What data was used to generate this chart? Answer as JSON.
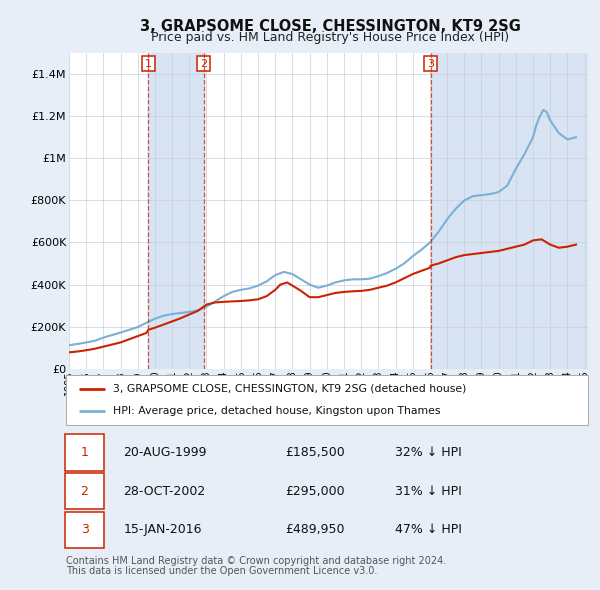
{
  "title": "3, GRAPSOME CLOSE, CHESSINGTON, KT9 2SG",
  "subtitle": "Price paid vs. HM Land Registry's House Price Index (HPI)",
  "ylim": [
    0,
    1500000
  ],
  "yticks": [
    0,
    200000,
    400000,
    600000,
    800000,
    1000000,
    1200000,
    1400000
  ],
  "ytick_labels": [
    "£0",
    "£200K",
    "£400K",
    "£600K",
    "£800K",
    "£1M",
    "£1.2M",
    "£1.4M"
  ],
  "hpi_color": "#7ab0d4",
  "price_color": "#cc2200",
  "background_color": "#e8eef8",
  "plot_bg_color": "#ffffff",
  "grid_color": "#c8d0dc",
  "shade_color": "#d8e4f4",
  "purchases": [
    {
      "date_num": 1999.62,
      "price": 185500,
      "label": "1"
    },
    {
      "date_num": 2002.83,
      "price": 295000,
      "label": "2"
    },
    {
      "date_num": 2016.04,
      "price": 489950,
      "label": "3"
    }
  ],
  "legend_line1": "3, GRAPSOME CLOSE, CHESSINGTON, KT9 2SG (detached house)",
  "legend_line2": "HPI: Average price, detached house, Kingston upon Thames",
  "table_rows": [
    {
      "num": "1",
      "date": "20-AUG-1999",
      "price": "£185,500",
      "hpi": "32% ↓ HPI"
    },
    {
      "num": "2",
      "date": "28-OCT-2002",
      "price": "£295,000",
      "hpi": "31% ↓ HPI"
    },
    {
      "num": "3",
      "date": "15-JAN-2016",
      "price": "£489,950",
      "hpi": "47% ↓ HPI"
    }
  ],
  "footer_line1": "Contains HM Land Registry data © Crown copyright and database right 2024.",
  "footer_line2": "This data is licensed under the Open Government Licence v3.0.",
  "hpi_years": [
    1995,
    1995.5,
    1996,
    1996.5,
    1997,
    1997.5,
    1998,
    1998.5,
    1999,
    1999.5,
    2000,
    2000.5,
    2001,
    2001.5,
    2002,
    2002.5,
    2003,
    2003.5,
    2004,
    2004.5,
    2005,
    2005.5,
    2006,
    2006.5,
    2007,
    2007.5,
    2008,
    2008.5,
    2009,
    2009.5,
    2010,
    2010.5,
    2011,
    2011.5,
    2012,
    2012.5,
    2013,
    2013.5,
    2014,
    2014.5,
    2015,
    2015.5,
    2016,
    2016.5,
    2017,
    2017.5,
    2018,
    2018.5,
    2019,
    2019.5,
    2020,
    2020.5,
    2021,
    2021.5,
    2022,
    2022.2,
    2022.4,
    2022.6,
    2022.8,
    2023,
    2023.5,
    2024,
    2024.5
  ],
  "hpi_values": [
    112000,
    118000,
    125000,
    133000,
    148000,
    160000,
    172000,
    185000,
    198000,
    218000,
    238000,
    252000,
    260000,
    265000,
    270000,
    278000,
    295000,
    320000,
    345000,
    365000,
    375000,
    382000,
    395000,
    415000,
    445000,
    460000,
    450000,
    425000,
    400000,
    385000,
    395000,
    410000,
    420000,
    425000,
    425000,
    428000,
    440000,
    455000,
    475000,
    500000,
    535000,
    565000,
    600000,
    650000,
    710000,
    760000,
    800000,
    820000,
    825000,
    830000,
    840000,
    870000,
    950000,
    1020000,
    1100000,
    1160000,
    1200000,
    1230000,
    1220000,
    1180000,
    1120000,
    1090000,
    1100000
  ],
  "red_years": [
    1995,
    1995.5,
    1996,
    1996.5,
    1997,
    1997.5,
    1998,
    1998.5,
    1999,
    1999.5,
    1999.62,
    2000,
    2000.5,
    2001,
    2001.5,
    2002,
    2002.5,
    2002.83,
    2003,
    2003.5,
    2004,
    2004.5,
    2005,
    2005.5,
    2006,
    2006.5,
    2007,
    2007.3,
    2007.7,
    2008,
    2008.5,
    2009,
    2009.5,
    2010,
    2010.5,
    2011,
    2011.5,
    2012,
    2012.5,
    2013,
    2013.5,
    2014,
    2014.5,
    2015,
    2015.5,
    2016,
    2016.04,
    2016.5,
    2017,
    2017.5,
    2018,
    2018.5,
    2019,
    2019.5,
    2020,
    2020.5,
    2021,
    2021.5,
    2022,
    2022.5,
    2023,
    2023.5,
    2024,
    2024.5
  ],
  "red_values": [
    78000,
    82000,
    88000,
    95000,
    105000,
    115000,
    125000,
    140000,
    155000,
    170000,
    185500,
    195000,
    210000,
    225000,
    240000,
    258000,
    275000,
    295000,
    305000,
    315000,
    318000,
    320000,
    322000,
    325000,
    330000,
    345000,
    375000,
    400000,
    410000,
    395000,
    370000,
    340000,
    340000,
    350000,
    360000,
    365000,
    368000,
    370000,
    375000,
    385000,
    395000,
    410000,
    430000,
    450000,
    465000,
    480000,
    489950,
    500000,
    515000,
    530000,
    540000,
    545000,
    550000,
    555000,
    560000,
    570000,
    580000,
    590000,
    610000,
    615000,
    590000,
    575000,
    580000,
    590000
  ]
}
